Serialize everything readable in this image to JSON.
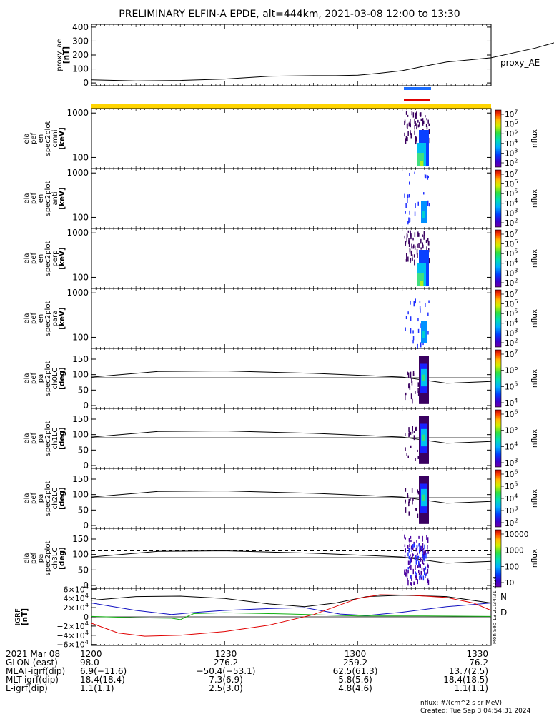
{
  "title": "PRELIMINARY ELFIN-A EPDE, alt=444km, 2021-03-08 12:00 to 13:30",
  "colors": {
    "axis": "#000000",
    "bar_blue": "#1a6cff",
    "bar_red": "#e00000",
    "bar_yellow": "#ffd400",
    "mlat": "#000000",
    "mlt": "#1010c0",
    "lshell": "#10b010",
    "igrf": "#e00000"
  },
  "chart_data": [
    {
      "type": "line",
      "id": "proxy_ae",
      "ylabel": "proxy_ae\n[nT]",
      "label": "proxy_AE",
      "yticks": [
        "400",
        "300",
        "200",
        "100",
        "0"
      ],
      "ylim": [
        -20,
        420
      ],
      "x_minutes": [
        0,
        10,
        20,
        30,
        40,
        50,
        55,
        60,
        65,
        70,
        75,
        80,
        90,
        100,
        105,
        110,
        115,
        120,
        125,
        130,
        135,
        140,
        150,
        160,
        170,
        180,
        190
      ],
      "values": [
        22,
        15,
        18,
        28,
        48,
        52,
        52,
        55,
        70,
        88,
        120,
        150,
        180,
        250,
        295,
        300,
        300,
        300,
        300,
        300,
        295,
        272,
        268,
        240,
        200,
        170,
        130
      ]
    },
    {
      "type": "bar",
      "id": "flags",
      "colors": [
        "blue",
        "red",
        "yellow"
      ]
    },
    {
      "type": "heatmap",
      "id": "en_omni",
      "ylabel": "ela\npef\nen\nspec2plot\nomni\n[keV]",
      "yticks": [
        "1000",
        "100"
      ],
      "zlabel": "nflux",
      "zticks": [
        "10^7",
        "10^6",
        "10^5",
        "10^4",
        "10^3",
        "10^2"
      ]
    },
    {
      "type": "heatmap",
      "id": "en_anti",
      "ylabel": "ela\npef\nen\nspec2plot\nanti\n[keV]",
      "yticks": [
        "1000",
        "100"
      ],
      "zlabel": "nflux",
      "zticks": [
        "10^7",
        "10^6",
        "10^5",
        "10^4",
        "10^3",
        "10^2"
      ]
    },
    {
      "type": "heatmap",
      "id": "en_perp",
      "ylabel": "ela\npef\nen\nspec2plot\nperp\n[keV]",
      "yticks": [
        "1000",
        "100"
      ],
      "zlabel": "nflux",
      "zticks": [
        "10^7",
        "10^6",
        "10^5",
        "10^4",
        "10^3",
        "10^2"
      ]
    },
    {
      "type": "heatmap",
      "id": "en_para",
      "ylabel": "ela\npef\nen\nspec2plot\npara\n[keV]",
      "yticks": [
        "1000",
        "100"
      ],
      "zlabel": "nflux",
      "zticks": [
        "10^7",
        "10^6",
        "10^5",
        "10^4",
        "10^3",
        "10^2"
      ]
    },
    {
      "type": "heatmap",
      "id": "pa_ch0",
      "ylabel": "ela\npef\npa\nspec2plot\nch0LC\n[deg]",
      "yticks": [
        "150",
        "100",
        "50",
        "0"
      ],
      "zlabel": "nflux",
      "zticks": [
        "10^7",
        "10^6",
        "10^5",
        "10^4"
      ]
    },
    {
      "type": "heatmap",
      "id": "pa_ch1",
      "ylabel": "ela\npef\npa\nspec2plot\nch1LC\n[deg]",
      "yticks": [
        "150",
        "100",
        "50",
        "0"
      ],
      "zlabel": "nflux",
      "zticks": [
        "10^6",
        "10^5",
        "10^4",
        "10^3"
      ]
    },
    {
      "type": "heatmap",
      "id": "pa_ch2",
      "ylabel": "ela\npef\npa\nspec2plot\nch2LC\n[deg]",
      "yticks": [
        "150",
        "100",
        "50",
        "0"
      ],
      "zlabel": "nflux",
      "zticks": [
        "10^6",
        "10^5",
        "10^4",
        "10^3",
        "10^2"
      ]
    },
    {
      "type": "heatmap",
      "id": "pa_ch3",
      "ylabel": "ela\npef\npa\nspec2plot\nch3LC\n[deg]",
      "yticks": [
        "150",
        "100",
        "50",
        "0"
      ],
      "zlabel": "nflux",
      "zticks": [
        "10000",
        "1000",
        "100",
        "10"
      ]
    },
    {
      "type": "line",
      "id": "igrf",
      "ylabel": "IGRF\n[nT]",
      "legend": [
        "N",
        "D"
      ],
      "yticks": [
        "6×10^4",
        "4×10^4",
        "2×10^4",
        "0",
        "−2×10^4",
        "−4×10^4",
        "−6×10^4"
      ],
      "side_text": "Mon Sep 13 21:34:31 2024"
    }
  ],
  "footer": {
    "rows": [
      [
        "2021 Mar 08",
        "1200",
        "1230",
        "1300",
        "1330"
      ],
      [
        "GLON (east)",
        "98.0",
        "276.2",
        "259.2",
        "76.2"
      ],
      [
        "MLAT-igrf(dip)",
        "6.9(−11.6)",
        "−50.4(−53.1)",
        "62.5(61.3)",
        "13.7(2.5)"
      ],
      [
        "MLT-igrf(dip)",
        "18.4(18.4)",
        "7.3(6.9)",
        "5.8(5.6)",
        "18.4(18.5)"
      ],
      [
        "L-igrf(dip)",
        "1.1(1.1)",
        "2.5(3.0)",
        "4.8(4.6)",
        "1.1(1.1)"
      ]
    ],
    "note1": "nflux: #/(cm^2 s sr MeV)",
    "note2": "Created: Tue Sep  3 04:54:31 2024"
  }
}
